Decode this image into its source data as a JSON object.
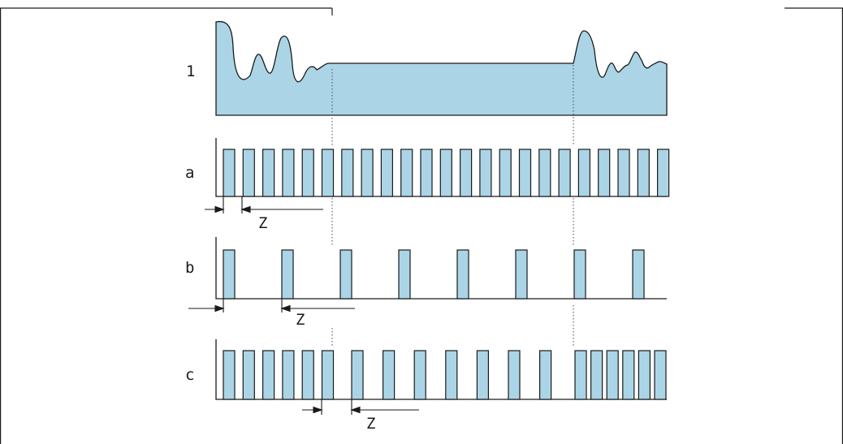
{
  "colors": {
    "fill": "#abd5e6",
    "stroke": "#1a1a1a",
    "guide": "#444444"
  },
  "rows": {
    "signal": {
      "label": "1"
    },
    "a": {
      "label": "a",
      "interval_label": "Z"
    },
    "b": {
      "label": "b",
      "interval_label": "Z"
    },
    "c": {
      "label": "c",
      "interval_label": "Z"
    }
  }
}
